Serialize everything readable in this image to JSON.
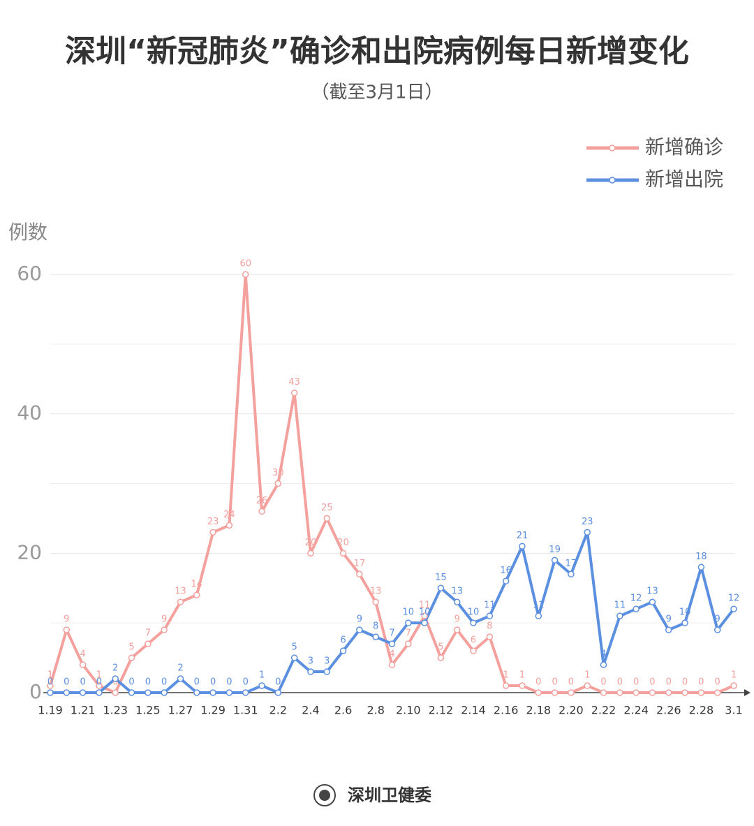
{
  "chart_data": {
    "type": "line",
    "title": "深圳“新冠肺炎”确诊和出院病例每日新增变化",
    "subtitle": "（截至3月1日）",
    "y_label": "例数",
    "source": "深圳卫健委",
    "categories": [
      "1.19",
      null,
      "1.21",
      null,
      "1.23",
      null,
      "1.25",
      null,
      "1.27",
      null,
      "1.29",
      null,
      "1.31",
      null,
      "2.2",
      null,
      "2.4",
      null,
      "2.6",
      null,
      "2.8",
      null,
      "2.10",
      null,
      "2.12",
      null,
      "2.14",
      null,
      "2.16",
      null,
      "2.18",
      null,
      "2.20",
      null,
      "2.22",
      null,
      "2.24",
      null,
      "2.26",
      null,
      "2.28",
      null,
      "3.1"
    ],
    "series": [
      {
        "name": "新增确诊",
        "color": "#f4a09c",
        "values": [
          1,
          9,
          4,
          1,
          0,
          5,
          7,
          9,
          13,
          14,
          23,
          24,
          60,
          26,
          30,
          43,
          20,
          25,
          20,
          17,
          13,
          4,
          7,
          11,
          5,
          9,
          6,
          8,
          1,
          1,
          0,
          0,
          0,
          1,
          0,
          0,
          0,
          0,
          0,
          0,
          0,
          0,
          1
        ]
      },
      {
        "name": "新增出院",
        "color": "#5b8fe0",
        "values": [
          0,
          0,
          0,
          0,
          2,
          0,
          0,
          0,
          2,
          0,
          0,
          0,
          0,
          1,
          0,
          5,
          3,
          3,
          6,
          9,
          8,
          7,
          10,
          10,
          15,
          13,
          10,
          11,
          16,
          21,
          11,
          19,
          17,
          23,
          4,
          11,
          12,
          13,
          9,
          10,
          18,
          9,
          12
        ]
      }
    ],
    "ylim": [
      0,
      60
    ],
    "yticks": [
      0,
      20,
      40,
      60
    ],
    "y_minor_ticks": [
      10,
      30,
      50
    ],
    "grid": true,
    "legend": "upper right"
  }
}
